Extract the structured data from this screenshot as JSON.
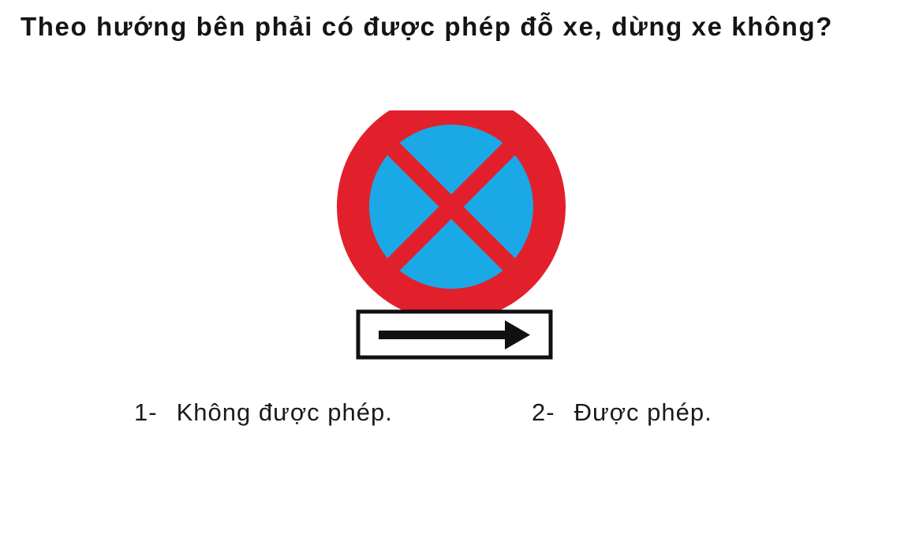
{
  "question": {
    "text": "Theo hướng bên phải có được phép đỗ xe, dừng xe không?"
  },
  "sign": {
    "icon": "no-parking-no-stopping-sign",
    "panel_icon": "right-arrow-icon",
    "colors": {
      "ring": "#e2202c",
      "field": "#1aa8e6",
      "cross": "#e2202c",
      "post": "#111111",
      "panel_border": "#111111",
      "arrow": "#111111"
    }
  },
  "answers": [
    {
      "number": "1-",
      "label": "Không được phép."
    },
    {
      "number": "2-",
      "label": "Được phép."
    }
  ]
}
